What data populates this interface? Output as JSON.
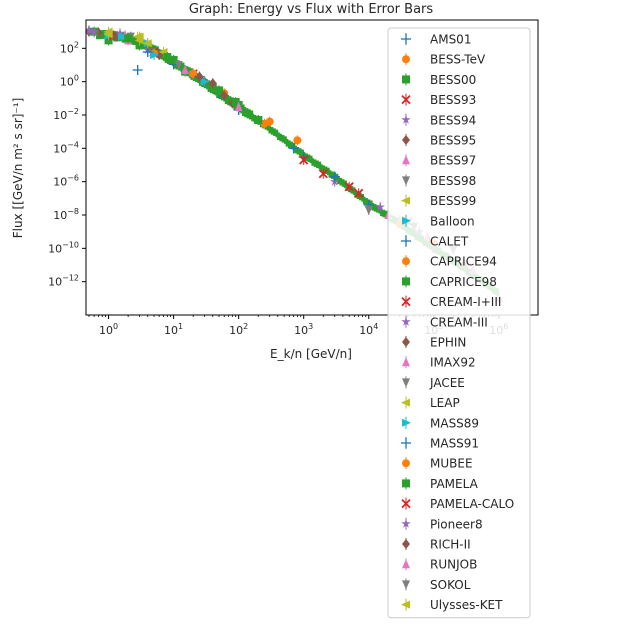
{
  "chart_data": {
    "type": "scatter",
    "title": "Graph: Energy vs Flux with Error Bars",
    "xlabel": "E_k/n [GeV/n]",
    "ylabel": "Flux [[GeV/n m² s sr]⁻¹]",
    "xscale": "log",
    "yscale": "log",
    "xlim": [
      0.45,
      4000000
    ],
    "ylim": [
      1e-14,
      5000
    ],
    "x_ticks": [
      {
        "value": 1,
        "base": "10",
        "exp": "0"
      },
      {
        "value": 10,
        "base": "10",
        "exp": "1"
      },
      {
        "value": 100,
        "base": "10",
        "exp": "2"
      },
      {
        "value": 1000,
        "base": "10",
        "exp": "3"
      },
      {
        "value": 10000,
        "base": "10",
        "exp": "4"
      },
      {
        "value": 100000,
        "base": "10",
        "exp": "5"
      },
      {
        "value": 1000000,
        "base": "10",
        "exp": "6"
      }
    ],
    "y_ticks": [
      {
        "value": 1e-12,
        "base": "10",
        "exp": "−12"
      },
      {
        "value": 1e-10,
        "base": "10",
        "exp": "−10"
      },
      {
        "value": 1e-08,
        "base": "10",
        "exp": "−8"
      },
      {
        "value": 1e-06,
        "base": "10",
        "exp": "−6"
      },
      {
        "value": 0.0001,
        "base": "10",
        "exp": "−4"
      },
      {
        "value": 0.01,
        "base": "10",
        "exp": "−2"
      },
      {
        "value": 1,
        "base": "10",
        "exp": "0"
      },
      {
        "value": 100,
        "base": "10",
        "exp": "2"
      }
    ],
    "grid": false,
    "legend_position": "right",
    "series": [
      {
        "name": "AMS01",
        "color": "#1f77b4",
        "marker": "plus",
        "points": [
          [
            0.5,
            1100
          ],
          [
            1,
            700
          ],
          [
            2.8,
            5
          ],
          [
            10,
            11
          ],
          [
            50,
            0.2
          ]
        ]
      },
      {
        "name": "BESS-TeV",
        "color": "#ff7f0e",
        "marker": "circle",
        "points": [
          [
            2,
            400
          ],
          [
            50,
            0.3
          ],
          [
            300,
            0.004
          ],
          [
            800,
            0.0003
          ]
        ]
      },
      {
        "name": "BESS00",
        "color": "#2ca02c",
        "marker": "square",
        "points": [
          [
            1,
            300
          ],
          [
            3,
            150
          ],
          [
            10,
            20
          ],
          [
            40,
            0.5
          ],
          [
            100,
            0.04
          ]
        ]
      },
      {
        "name": "BESS93",
        "color": "#d62728",
        "marker": "x",
        "points": [
          [
            1.2,
            600
          ],
          [
            5,
            60
          ],
          [
            20,
            3
          ]
        ]
      },
      {
        "name": "BESS94",
        "color": "#9467bd",
        "marker": "star",
        "points": [
          [
            1.5,
            800
          ],
          [
            4,
            80
          ],
          [
            15,
            5
          ]
        ]
      },
      {
        "name": "BESS95",
        "color": "#8c564b",
        "marker": "diamond",
        "points": [
          [
            1.3,
            500
          ],
          [
            6,
            40
          ],
          [
            30,
            1
          ],
          [
            80,
            0.05
          ]
        ]
      },
      {
        "name": "BESS97",
        "color": "#e377c2",
        "marker": "triangle-up",
        "points": [
          [
            1.8,
            600
          ],
          [
            8,
            30
          ]
        ]
      },
      {
        "name": "BESS98",
        "color": "#7f7f7f",
        "marker": "triangle-down",
        "points": [
          [
            2.2,
            500
          ],
          [
            12,
            10
          ]
        ]
      },
      {
        "name": "BESS99",
        "color": "#bcbd22",
        "marker": "triangle-left",
        "points": [
          [
            1,
            1000
          ],
          [
            3,
            500
          ],
          [
            7,
            60
          ]
        ]
      },
      {
        "name": "Balloon",
        "color": "#17becf",
        "marker": "triangle-right",
        "points": [
          [
            1,
            600
          ],
          [
            1.6,
            500
          ],
          [
            4,
            200
          ],
          [
            20,
            3
          ]
        ]
      },
      {
        "name": "CALET",
        "color": "#1f77b4",
        "marker": "plus",
        "points": [
          [
            100,
            0.02
          ],
          [
            1000,
            3e-05
          ],
          [
            10000,
            4e-08
          ]
        ]
      },
      {
        "name": "CAPRICE94",
        "color": "#ff7f0e",
        "marker": "circle",
        "points": [
          [
            5,
            50
          ],
          [
            20,
            3
          ],
          [
            60,
            0.2
          ],
          [
            250,
            0.003
          ]
        ]
      },
      {
        "name": "CAPRICE98",
        "color": "#2ca02c",
        "marker": "square",
        "points": [
          [
            3,
            200
          ],
          [
            15,
            4
          ],
          [
            90,
            0.06
          ],
          [
            200,
            0.005
          ]
        ]
      },
      {
        "name": "CREAM-I+III",
        "color": "#d62728",
        "marker": "x",
        "points": [
          [
            2000,
            3e-06
          ],
          [
            7000,
            2e-07
          ],
          [
            40000,
            4e-09
          ]
        ]
      },
      {
        "name": "CREAM-III",
        "color": "#9467bd",
        "marker": "star",
        "points": [
          [
            3000,
            1e-06
          ],
          [
            15000,
            3e-08
          ],
          [
            60000,
            1e-09
          ]
        ]
      },
      {
        "name": "EPHIN",
        "color": "#8c564b",
        "marker": "diamond",
        "points": [
          [
            0.5,
            1000
          ],
          [
            0.7,
            900
          ],
          [
            40,
            0.8
          ]
        ]
      },
      {
        "name": "IMAX92",
        "color": "#e377c2",
        "marker": "triangle-up",
        "points": [
          [
            2,
            300
          ],
          [
            15,
            5
          ],
          [
            100,
            0.03
          ],
          [
            30000,
            5e-09
          ],
          [
            1000000,
            1e-13
          ]
        ]
      },
      {
        "name": "JACEE",
        "color": "#7f7f7f",
        "marker": "triangle-down",
        "points": [
          [
            10000,
            2e-08
          ],
          [
            50000,
            2e-09
          ],
          [
            200000,
            8e-11
          ]
        ]
      },
      {
        "name": "LEAP",
        "color": "#bcbd22",
        "marker": "triangle-left",
        "points": [
          [
            0.6,
            900
          ],
          [
            1,
            800
          ],
          [
            3,
            300
          ]
        ]
      },
      {
        "name": "MASS89",
        "color": "#17becf",
        "marker": "triangle-right",
        "points": [
          [
            5,
            40
          ],
          [
            30,
            1
          ]
        ]
      },
      {
        "name": "MASS91",
        "color": "#1f77b4",
        "marker": "plus",
        "points": [
          [
            4,
            60
          ],
          [
            25,
            2
          ],
          [
            700,
            0.0001
          ],
          [
            3000,
            2e-06
          ]
        ]
      },
      {
        "name": "MUBEE",
        "color": "#ff7f0e",
        "marker": "circle",
        "points": [
          [
            30000,
            3e-09
          ],
          [
            100000,
            2e-10
          ],
          [
            300000,
            1e-11
          ]
        ]
      },
      {
        "name": "PAMELA",
        "color": "#2ca02c",
        "marker": "square",
        "points": [
          [
            0.6,
            1000
          ],
          [
            2,
            400
          ],
          [
            8,
            30
          ],
          [
            50,
            0.3
          ],
          [
            200,
            0.005
          ]
        ]
      },
      {
        "name": "PAMELA-CALO",
        "color": "#d62728",
        "marker": "x",
        "points": [
          [
            1000,
            2e-05
          ],
          [
            5000,
            5e-07
          ]
        ]
      },
      {
        "name": "Pioneer8",
        "color": "#9467bd",
        "marker": "star",
        "points": [
          [
            0.5,
            1200
          ],
          [
            0.6,
            1000
          ]
        ]
      },
      {
        "name": "RICH-II",
        "color": "#8c564b",
        "marker": "diamond",
        "points": [
          [
            25,
            2
          ],
          [
            60,
            0.15
          ]
        ]
      },
      {
        "name": "RUNJOB",
        "color": "#e377c2",
        "marker": "triangle-up",
        "points": [
          [
            20000,
            1e-08
          ],
          [
            80000,
            5e-10
          ],
          [
            400000,
            5e-12
          ]
        ]
      },
      {
        "name": "SOKOL",
        "color": "#7f7f7f",
        "marker": "triangle-down",
        "points": [
          [
            100000,
            1e-10
          ],
          [
            300000,
            8e-12
          ]
        ]
      },
      {
        "name": "Ulysses-KET",
        "color": "#bcbd22",
        "marker": "triangle-left",
        "points": [
          [
            1,
            700
          ],
          [
            2.8,
            500
          ],
          [
            4,
            200
          ]
        ]
      }
    ],
    "trend": {
      "color": "#2ca02c",
      "points": [
        [
          0.7,
          700
        ],
        [
          1,
          600
        ],
        [
          2,
          400
        ],
        [
          3,
          250
        ],
        [
          5,
          80
        ],
        [
          10,
          15
        ],
        [
          20,
          2.5
        ],
        [
          50,
          0.2
        ],
        [
          100,
          0.03
        ],
        [
          300,
          0.0015
        ],
        [
          1000,
          4e-05
        ],
        [
          3000,
          2e-06
        ],
        [
          10000,
          5e-08
        ],
        [
          30000,
          3e-09
        ],
        [
          100000,
          1e-10
        ],
        [
          300000,
          6e-12
        ],
        [
          1000000,
          2e-13
        ]
      ]
    }
  }
}
